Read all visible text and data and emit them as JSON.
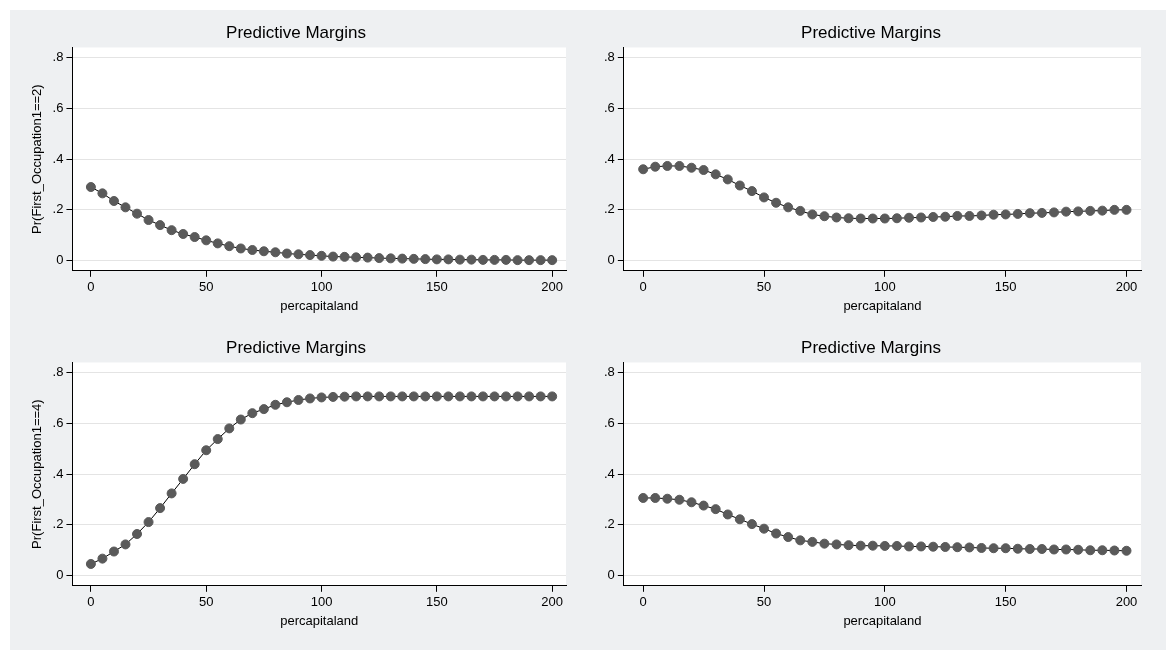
{
  "chart_data": [
    {
      "type": "line",
      "title": "Predictive Margins",
      "xlabel": "percapitaland",
      "ylabel": "Pr(First_Occupation1==2)",
      "marker": "circle",
      "grid": "y",
      "legend": false,
      "x": [
        0,
        5,
        10,
        15,
        20,
        25,
        30,
        35,
        40,
        45,
        50,
        55,
        60,
        65,
        70,
        75,
        80,
        85,
        90,
        95,
        100,
        105,
        110,
        115,
        120,
        125,
        130,
        135,
        140,
        145,
        150,
        155,
        160,
        165,
        170,
        175,
        180,
        185,
        190,
        195,
        200
      ],
      "series": [
        {
          "color": "#5a5a5a",
          "values": [
            0.29,
            0.265,
            0.235,
            0.21,
            0.185,
            0.16,
            0.14,
            0.12,
            0.105,
            0.093,
            0.08,
            0.068,
            0.057,
            0.048,
            0.042,
            0.037,
            0.033,
            0.028,
            0.025,
            0.022,
            0.019,
            0.016,
            0.015,
            0.013,
            0.012,
            0.01,
            0.009,
            0.008,
            0.007,
            0.006,
            0.005,
            0.005,
            0.004,
            0.004,
            0.003,
            0.003,
            0.003,
            0.002,
            0.002,
            0.002,
            0.002
          ]
        }
      ],
      "xlim": [
        -8,
        206
      ],
      "xticks": [
        0,
        50,
        100,
        150,
        200
      ],
      "ylim": [
        -0.04,
        0.84
      ],
      "yticks": [
        {
          "value": 0,
          "label": "0"
        },
        {
          "value": 0.2,
          "label": ".2"
        },
        {
          "value": 0.4,
          "label": ".4"
        },
        {
          "value": 0.6,
          "label": ".6"
        },
        {
          "value": 0.8,
          "label": ".8"
        }
      ]
    },
    {
      "type": "line",
      "title": "Predictive Margins",
      "xlabel": "percapitaland",
      "marker": "circle",
      "grid": "y",
      "legend": false,
      "x": [
        0,
        5,
        10,
        15,
        20,
        25,
        30,
        35,
        40,
        45,
        50,
        55,
        60,
        65,
        70,
        75,
        80,
        85,
        90,
        95,
        100,
        105,
        110,
        115,
        120,
        125,
        130,
        135,
        140,
        145,
        150,
        155,
        160,
        165,
        170,
        175,
        180,
        185,
        190,
        195,
        200
      ],
      "series": [
        {
          "color": "#5a5a5a",
          "values": [
            0.36,
            0.37,
            0.373,
            0.373,
            0.366,
            0.357,
            0.34,
            0.32,
            0.296,
            0.274,
            0.249,
            0.228,
            0.21,
            0.196,
            0.182,
            0.175,
            0.17,
            0.167,
            0.166,
            0.166,
            0.166,
            0.167,
            0.169,
            0.17,
            0.172,
            0.173,
            0.176,
            0.176,
            0.178,
            0.181,
            0.182,
            0.184,
            0.187,
            0.188,
            0.19,
            0.193,
            0.194,
            0.196,
            0.197,
            0.2,
            0.2
          ]
        }
      ],
      "xlim": [
        -8,
        206
      ],
      "xticks": [
        0,
        50,
        100,
        150,
        200
      ],
      "ylim": [
        -0.04,
        0.84
      ],
      "yticks": [
        {
          "value": 0,
          "label": "0"
        },
        {
          "value": 0.2,
          "label": ".2"
        },
        {
          "value": 0.4,
          "label": ".4"
        },
        {
          "value": 0.6,
          "label": ".6"
        },
        {
          "value": 0.8,
          "label": ".8"
        }
      ]
    },
    {
      "type": "line",
      "title": "Predictive Margins",
      "xlabel": "percapitaland",
      "ylabel": "Pr(First_Occupation1==4)",
      "marker": "circle",
      "grid": "y",
      "legend": false,
      "x": [
        0,
        5,
        10,
        15,
        20,
        25,
        30,
        35,
        40,
        45,
        50,
        55,
        60,
        65,
        70,
        75,
        80,
        85,
        90,
        95,
        100,
        105,
        110,
        115,
        120,
        125,
        130,
        135,
        140,
        145,
        150,
        155,
        160,
        165,
        170,
        175,
        180,
        185,
        190,
        195,
        200
      ],
      "series": [
        {
          "color": "#5a5a5a",
          "values": [
            0.046,
            0.067,
            0.095,
            0.123,
            0.164,
            0.211,
            0.266,
            0.324,
            0.381,
            0.439,
            0.494,
            0.538,
            0.58,
            0.615,
            0.64,
            0.656,
            0.673,
            0.683,
            0.692,
            0.698,
            0.702,
            0.704,
            0.705,
            0.706,
            0.706,
            0.706,
            0.706,
            0.706,
            0.706,
            0.706,
            0.706,
            0.706,
            0.706,
            0.706,
            0.706,
            0.706,
            0.706,
            0.706,
            0.706,
            0.706,
            0.706
          ]
        }
      ],
      "xlim": [
        -8,
        206
      ],
      "xticks": [
        0,
        50,
        100,
        150,
        200
      ],
      "ylim": [
        -0.04,
        0.84
      ],
      "yticks": [
        {
          "value": 0,
          "label": "0"
        },
        {
          "value": 0.2,
          "label": ".2"
        },
        {
          "value": 0.4,
          "label": ".4"
        },
        {
          "value": 0.6,
          "label": ".6"
        },
        {
          "value": 0.8,
          "label": ".8"
        }
      ]
    },
    {
      "type": "line",
      "title": "Predictive Margins",
      "xlabel": "percapitaland",
      "marker": "circle",
      "grid": "y",
      "legend": false,
      "x": [
        0,
        5,
        10,
        15,
        20,
        25,
        30,
        35,
        40,
        45,
        50,
        55,
        60,
        65,
        70,
        75,
        80,
        85,
        90,
        95,
        100,
        105,
        110,
        115,
        120,
        125,
        130,
        135,
        140,
        145,
        150,
        155,
        160,
        165,
        170,
        175,
        180,
        185,
        190,
        195,
        200
      ],
      "series": [
        {
          "color": "#5a5a5a",
          "values": [
            0.306,
            0.306,
            0.303,
            0.299,
            0.289,
            0.276,
            0.262,
            0.241,
            0.222,
            0.203,
            0.185,
            0.166,
            0.152,
            0.139,
            0.133,
            0.126,
            0.123,
            0.12,
            0.118,
            0.118,
            0.117,
            0.117,
            0.115,
            0.115,
            0.114,
            0.113,
            0.112,
            0.111,
            0.109,
            0.108,
            0.108,
            0.106,
            0.105,
            0.105,
            0.103,
            0.103,
            0.102,
            0.1,
            0.1,
            0.099,
            0.098
          ]
        }
      ],
      "xlim": [
        -8,
        206
      ],
      "xticks": [
        0,
        50,
        100,
        150,
        200
      ],
      "ylim": [
        -0.04,
        0.84
      ],
      "yticks": [
        {
          "value": 0,
          "label": "0"
        },
        {
          "value": 0.2,
          "label": ".2"
        },
        {
          "value": 0.4,
          "label": ".4"
        },
        {
          "value": 0.6,
          "label": ".6"
        },
        {
          "value": 0.8,
          "label": ".8"
        }
      ]
    }
  ]
}
